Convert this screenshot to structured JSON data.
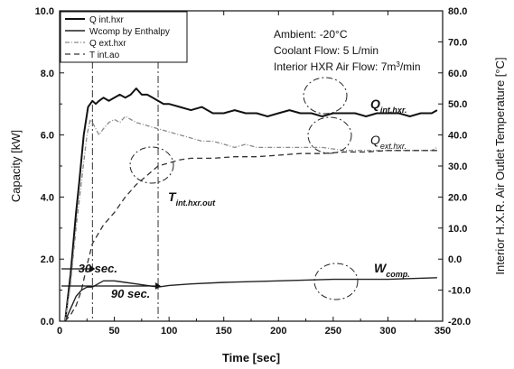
{
  "chart_data": {
    "type": "line",
    "xlabel": "Time [sec]",
    "ylabel": "Capacity [kW]",
    "y2label": "Interior H.X.R. Air Outlet Temperature [°C]",
    "xlim": [
      0,
      350
    ],
    "ylim": [
      0,
      10
    ],
    "y2lim": [
      -20,
      80
    ],
    "grid": false,
    "legend_position": "top-left",
    "x_ticks": [
      0,
      50,
      100,
      150,
      200,
      250,
      300,
      350
    ],
    "y_ticks": [
      "0.0",
      "2.0",
      "4.0",
      "6.0",
      "8.0",
      "10.0"
    ],
    "y2_ticks": [
      "-20.0",
      "-10.0",
      "0.0",
      "10.0",
      "20.0",
      "30.0",
      "40.0",
      "50.0",
      "60.0",
      "70.0",
      "80.0"
    ],
    "conditions": {
      "ambient": "Ambient: -20°C",
      "coolant": "Coolant Flow: 5 L/min",
      "airflow_prefix": "Interior HXR Air Flow: 7m",
      "airflow_sup": "3",
      "airflow_suffix": "/min"
    },
    "series": [
      {
        "name": "Q int.hxr",
        "axis": "left",
        "x": [
          5,
          10,
          15,
          18,
          22,
          26,
          28,
          30,
          33,
          36,
          40,
          45,
          50,
          55,
          60,
          65,
          70,
          75,
          80,
          85,
          90,
          95,
          100,
          110,
          120,
          130,
          140,
          150,
          160,
          170,
          180,
          190,
          200,
          210,
          220,
          230,
          240,
          250,
          260,
          270,
          280,
          290,
          300,
          310,
          320,
          330,
          340,
          345
        ],
        "y": [
          0.0,
          1.5,
          3.5,
          4.5,
          6.0,
          6.9,
          7.0,
          7.1,
          7.0,
          7.1,
          7.2,
          7.1,
          7.2,
          7.3,
          7.2,
          7.3,
          7.5,
          7.3,
          7.3,
          7.2,
          7.1,
          7.0,
          7.0,
          6.9,
          6.8,
          6.9,
          6.7,
          6.7,
          6.8,
          6.7,
          6.7,
          6.6,
          6.7,
          6.8,
          6.7,
          6.7,
          6.6,
          6.7,
          6.7,
          6.7,
          6.6,
          6.7,
          6.7,
          6.7,
          6.6,
          6.7,
          6.7,
          6.8
        ]
      },
      {
        "name": "Wcomp by Enthalpy",
        "axis": "left",
        "x": [
          5,
          10,
          15,
          20,
          25,
          30,
          35,
          40,
          50,
          60,
          70,
          80,
          90,
          100,
          120,
          150,
          200,
          250,
          300,
          345
        ],
        "y": [
          0.0,
          0.4,
          0.8,
          1.0,
          1.1,
          1.1,
          1.2,
          1.3,
          1.3,
          1.25,
          1.2,
          1.15,
          1.1,
          1.15,
          1.2,
          1.25,
          1.3,
          1.35,
          1.35,
          1.4
        ]
      },
      {
        "name": "Q ext.hxr",
        "axis": "left",
        "x": [
          5,
          10,
          15,
          20,
          25,
          28,
          30,
          33,
          36,
          40,
          45,
          50,
          55,
          60,
          70,
          80,
          90,
          100,
          110,
          120,
          130,
          140,
          150,
          160,
          170,
          180,
          190,
          200,
          220,
          240,
          260,
          280,
          300,
          320,
          340,
          345
        ],
        "y": [
          0.0,
          1.2,
          3.0,
          4.5,
          6.0,
          6.5,
          6.4,
          6.2,
          6.0,
          6.2,
          6.4,
          6.5,
          6.4,
          6.6,
          6.4,
          6.3,
          6.2,
          6.1,
          6.0,
          5.9,
          5.8,
          5.8,
          5.7,
          5.6,
          5.7,
          5.6,
          5.6,
          5.6,
          5.6,
          5.6,
          5.5,
          5.5,
          5.5,
          5.5,
          5.5,
          5.6
        ]
      },
      {
        "name": "T int.ao",
        "axis": "right",
        "x": [
          5,
          10,
          15,
          20,
          25,
          30,
          35,
          40,
          45,
          50,
          60,
          70,
          80,
          90,
          100,
          110,
          120,
          140,
          160,
          180,
          200,
          220,
          240,
          260,
          280,
          300,
          320,
          340,
          345
        ],
        "y": [
          -20,
          -18,
          -15,
          -10,
          -2,
          5,
          8,
          11,
          13,
          15,
          20,
          24,
          27,
          30,
          31,
          32,
          32.5,
          32.5,
          33,
          33,
          33.5,
          34,
          34,
          34.5,
          34.5,
          35,
          35,
          35,
          35
        ]
      }
    ],
    "annotations": {
      "q_int_prefix": "Q",
      "q_int_sub": "int.hxr.",
      "q_ext_prefix": "Q",
      "q_ext_sub": "ext.hxr.",
      "t_int_prefix": "T",
      "t_int_sub": "int.hxr.out",
      "w_comp_prefix": "W",
      "w_comp_sub": "comp.",
      "time_30": "30 sec.",
      "time_90": "90 sec."
    },
    "colors": {
      "axis": "#111111",
      "q_int": "#111111",
      "q_ext": "#8a8a8a",
      "w_comp": "#222222",
      "t_int": "#333333"
    }
  }
}
